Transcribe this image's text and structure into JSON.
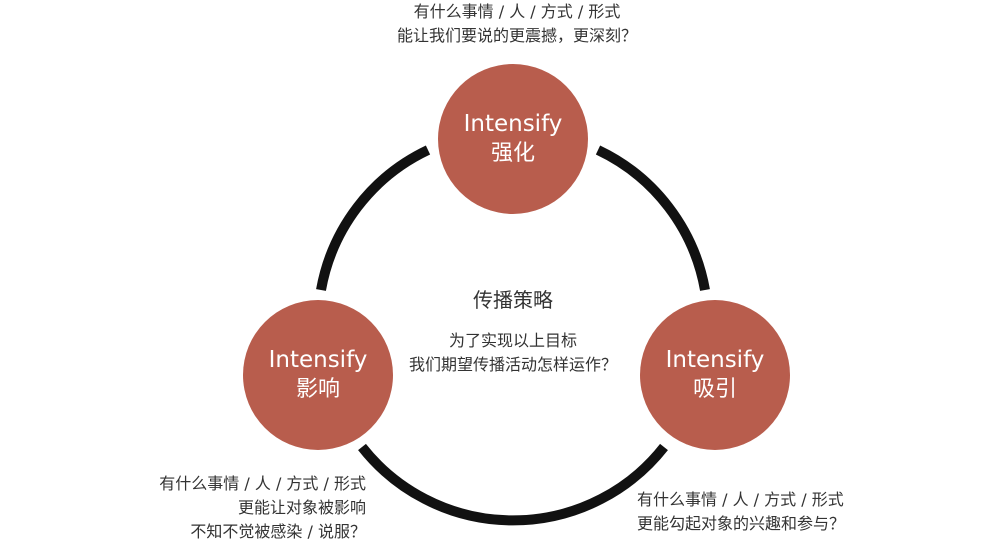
{
  "nodes": {
    "top": {
      "en": "Intensify",
      "zh": "强化"
    },
    "left": {
      "en": "Intensify",
      "zh": "影响"
    },
    "right": {
      "en": "Intensify",
      "zh": "吸引"
    }
  },
  "center": {
    "title": "传播策略",
    "lines": [
      "为了实现以上目标",
      "我们期望传播活动怎样运作？"
    ]
  },
  "captions": {
    "top": [
      "有什么事情 / 人 / 方式 / 形式",
      "能让我们要说的更震撼，更深刻？"
    ],
    "left": [
      "有什么事情 / 人 / 方式 / 形式",
      "更能让对象被影响",
      "不知不觉被感染 / 说服？"
    ],
    "right": [
      "有什么事情 / 人 / 方式 / 形式",
      "更能勾起对象的兴趣和参与？"
    ]
  },
  "colors": {
    "node_fill": "#b85d4d",
    "ring_stroke": "#111111",
    "text": "#333333"
  }
}
